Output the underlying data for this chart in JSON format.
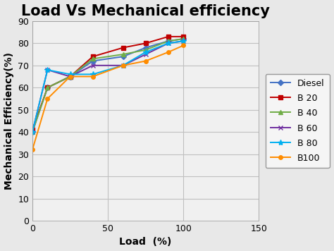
{
  "title": "Load Vs Mechanical efficiency",
  "xlabel": "Load  (%)",
  "ylabel": "Mechanical Efficiency(%)",
  "xlim": [
    0,
    150
  ],
  "ylim": [
    0,
    90
  ],
  "xticks": [
    0,
    50,
    100,
    150
  ],
  "yticks": [
    0,
    10,
    20,
    30,
    40,
    50,
    60,
    70,
    80,
    90
  ],
  "x_data": [
    0,
    10,
    25,
    40,
    60,
    75,
    90,
    100
  ],
  "series": [
    {
      "label": "Diesel",
      "color": "#4472C4",
      "marker": "D",
      "markersize": 4,
      "y": [
        40,
        60,
        65,
        72,
        74,
        78,
        81,
        82
      ]
    },
    {
      "label": "B 20",
      "color": "#C00000",
      "marker": "s",
      "markersize": 4,
      "y": [
        41,
        60,
        65,
        74,
        78,
        80,
        83,
        83
      ]
    },
    {
      "label": "B 40",
      "color": "#70AD47",
      "marker": "^",
      "markersize": 4,
      "y": [
        40,
        60,
        65,
        73,
        75,
        77,
        81,
        82
      ]
    },
    {
      "label": "B 60",
      "color": "#7030A0",
      "marker": "x",
      "markersize": 5,
      "y": [
        40,
        68,
        65,
        70,
        70,
        75,
        80,
        81
      ]
    },
    {
      "label": "B 80",
      "color": "#00B0F0",
      "marker": "*",
      "markersize": 6,
      "y": [
        40,
        68,
        66,
        66,
        70,
        76,
        80,
        81
      ]
    },
    {
      "label": "B100",
      "color": "#FF8C00",
      "marker": "o",
      "markersize": 4,
      "y": [
        32,
        55,
        65,
        65,
        70,
        72,
        76,
        79
      ]
    }
  ],
  "title_fontsize": 15,
  "axis_label_fontsize": 10,
  "tick_fontsize": 9,
  "legend_fontsize": 9,
  "figure_facecolor": "#E8E8E8",
  "plot_facecolor": "#F0F0F0",
  "grid_color": "#C0C0C0",
  "linewidth": 1.4
}
